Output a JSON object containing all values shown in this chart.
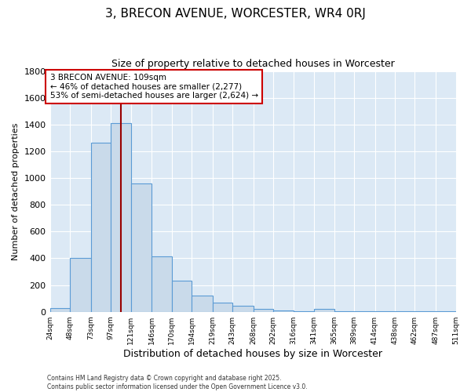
{
  "title": "3, BRECON AVENUE, WORCESTER, WR4 0RJ",
  "subtitle": "Size of property relative to detached houses in Worcester",
  "xlabel": "Distribution of detached houses by size in Worcester",
  "ylabel": "Number of detached properties",
  "footer_line1": "Contains HM Land Registry data © Crown copyright and database right 2025.",
  "footer_line2": "Contains public sector information licensed under the Open Government Licence v3.0.",
  "bins": [
    24,
    48,
    73,
    97,
    121,
    146,
    170,
    194,
    219,
    243,
    268,
    292,
    316,
    341,
    365,
    389,
    414,
    438,
    462,
    487,
    511
  ],
  "bin_labels": [
    "24sqm",
    "48sqm",
    "73sqm",
    "97sqm",
    "121sqm",
    "146sqm",
    "170sqm",
    "194sqm",
    "219sqm",
    "243sqm",
    "268sqm",
    "292sqm",
    "316sqm",
    "341sqm",
    "365sqm",
    "389sqm",
    "414sqm",
    "438sqm",
    "462sqm",
    "487sqm",
    "511sqm"
  ],
  "counts": [
    25,
    400,
    1265,
    1410,
    960,
    415,
    235,
    120,
    70,
    45,
    20,
    10,
    5,
    20,
    5,
    5,
    5,
    3,
    3,
    3
  ],
  "bar_color": "#c9daea",
  "bar_edge_color": "#5b9bd5",
  "bg_color": "#dce9f5",
  "grid_color": "#ffffff",
  "vline_x": 109,
  "vline_color": "#990000",
  "annotation_text": "3 BRECON AVENUE: 109sqm\n← 46% of detached houses are smaller (2,277)\n53% of semi-detached houses are larger (2,624) →",
  "annotation_box_color": "#ffffff",
  "annotation_border_color": "#cc0000",
  "ylim": [
    0,
    1800
  ],
  "yticks": [
    0,
    200,
    400,
    600,
    800,
    1000,
    1200,
    1400,
    1600,
    1800
  ],
  "title_fontsize": 11,
  "subtitle_fontsize": 9
}
